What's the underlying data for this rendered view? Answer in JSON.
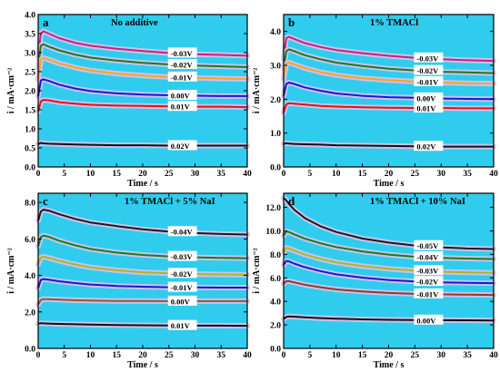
{
  "chart_data": [
    {
      "type": "line",
      "panel_letter": "a",
      "title": "No additive",
      "xlabel": "Time / s",
      "ylabel": "i / mA·cm⁻²",
      "xlim": [
        0,
        40
      ],
      "ylim": [
        0,
        4.0
      ],
      "xticks": [
        0,
        5,
        10,
        15,
        20,
        25,
        30,
        35,
        40
      ],
      "yticks": [
        0.0,
        0.5,
        1.0,
        1.5,
        2.0,
        2.5,
        3.0,
        3.5,
        4.0
      ],
      "ytick_labels": [
        "0.0",
        "0.5",
        "1.0",
        "1.5",
        "2.0",
        "2.5",
        "3.0",
        "3.5",
        "4.0"
      ],
      "series": [
        {
          "name": "-0.03V",
          "color": "#c8217a",
          "x": [
            0,
            0.5,
            1,
            2,
            4,
            7,
            10,
            15,
            20,
            25,
            30,
            35,
            40
          ],
          "y": [
            2.9,
            3.5,
            3.56,
            3.5,
            3.38,
            3.26,
            3.18,
            3.1,
            3.04,
            2.99,
            2.96,
            2.94,
            2.92
          ]
        },
        {
          "name": "-0.02V",
          "color": "#1a7a1a",
          "x": [
            0,
            0.5,
            1,
            2,
            4,
            7,
            10,
            15,
            20,
            25,
            30,
            35,
            40
          ],
          "y": [
            2.6,
            3.18,
            3.22,
            3.16,
            3.06,
            2.95,
            2.87,
            2.79,
            2.73,
            2.69,
            2.66,
            2.64,
            2.62
          ]
        },
        {
          "name": "-0.01V",
          "color": "#f5a623",
          "x": [
            0,
            0.5,
            1,
            2,
            4,
            7,
            10,
            15,
            20,
            25,
            30,
            35,
            40
          ],
          "y": [
            2.3,
            2.82,
            2.86,
            2.82,
            2.72,
            2.61,
            2.53,
            2.45,
            2.4,
            2.36,
            2.34,
            2.32,
            2.31
          ]
        },
        {
          "name": "0.00V",
          "color": "#1818d0",
          "x": [
            0,
            0.5,
            1,
            2,
            4,
            7,
            10,
            15,
            20,
            25,
            30,
            35,
            40
          ],
          "y": [
            1.85,
            2.27,
            2.3,
            2.26,
            2.16,
            2.06,
            1.99,
            1.93,
            1.9,
            1.88,
            1.87,
            1.86,
            1.86
          ]
        },
        {
          "name": "0.01V",
          "color": "#e01010",
          "x": [
            0,
            0.5,
            1,
            2,
            4,
            7,
            10,
            15,
            20,
            25,
            30,
            35,
            40
          ],
          "y": [
            1.45,
            1.72,
            1.76,
            1.75,
            1.7,
            1.66,
            1.63,
            1.61,
            1.6,
            1.59,
            1.58,
            1.58,
            1.57
          ]
        },
        {
          "name": "0.02V",
          "color": "#111111",
          "x": [
            0,
            0.5,
            1,
            2,
            4,
            7,
            10,
            15,
            20,
            25,
            30,
            35,
            40
          ],
          "y": [
            0.6,
            0.63,
            0.62,
            0.61,
            0.6,
            0.59,
            0.58,
            0.57,
            0.57,
            0.56,
            0.56,
            0.56,
            0.56
          ]
        }
      ]
    },
    {
      "type": "line",
      "panel_letter": "b",
      "title": "1% TMACl",
      "xlabel": "Time / s",
      "ylabel": "i / mA·cm⁻²",
      "xlim": [
        0,
        40
      ],
      "ylim": [
        0,
        4.5
      ],
      "xticks": [
        0,
        5,
        10,
        15,
        20,
        25,
        30,
        35,
        40
      ],
      "yticks": [
        0.0,
        1.0,
        2.0,
        3.0,
        4.0
      ],
      "ytick_labels": [
        "0.0",
        "1.0",
        "2.0",
        "3.0",
        "4.0"
      ],
      "series": [
        {
          "name": "-0.03V",
          "color": "#c8217a",
          "x": [
            0,
            0.5,
            1,
            2,
            4,
            7,
            10,
            15,
            20,
            25,
            30,
            35,
            40
          ],
          "y": [
            3.2,
            3.8,
            3.84,
            3.78,
            3.66,
            3.54,
            3.45,
            3.36,
            3.28,
            3.22,
            3.18,
            3.15,
            3.13
          ]
        },
        {
          "name": "-0.02V",
          "color": "#1a7a1a",
          "x": [
            0,
            0.5,
            1,
            2,
            4,
            7,
            10,
            15,
            20,
            25,
            30,
            35,
            40
          ],
          "y": [
            2.9,
            3.42,
            3.47,
            3.42,
            3.3,
            3.18,
            3.08,
            2.98,
            2.9,
            2.85,
            2.81,
            2.79,
            2.77
          ]
        },
        {
          "name": "-0.01V",
          "color": "#f5a623",
          "x": [
            0,
            0.5,
            1,
            2,
            4,
            7,
            10,
            15,
            20,
            25,
            30,
            35,
            40
          ],
          "y": [
            2.6,
            3.05,
            3.08,
            3.03,
            2.92,
            2.8,
            2.71,
            2.62,
            2.56,
            2.52,
            2.49,
            2.47,
            2.46
          ]
        },
        {
          "name": "0.00V",
          "color": "#1818d0",
          "x": [
            0,
            0.5,
            1,
            2,
            4,
            7,
            10,
            15,
            20,
            25,
            30,
            35,
            40
          ],
          "y": [
            2.1,
            2.45,
            2.49,
            2.45,
            2.35,
            2.25,
            2.17,
            2.1,
            2.06,
            2.04,
            2.02,
            2.01,
            2.0
          ]
        },
        {
          "name": "0.01V",
          "color": "#e01010",
          "x": [
            0,
            0.5,
            1,
            2,
            4,
            7,
            10,
            15,
            20,
            25,
            30,
            35,
            40
          ],
          "y": [
            1.6,
            1.85,
            1.88,
            1.87,
            1.84,
            1.8,
            1.78,
            1.76,
            1.75,
            1.74,
            1.74,
            1.73,
            1.73
          ]
        },
        {
          "name": "0.02V",
          "color": "#111111",
          "x": [
            0,
            0.5,
            1,
            2,
            4,
            7,
            10,
            15,
            20,
            25,
            30,
            35,
            40
          ],
          "y": [
            0.68,
            0.7,
            0.69,
            0.68,
            0.67,
            0.66,
            0.64,
            0.63,
            0.62,
            0.61,
            0.6,
            0.6,
            0.6
          ]
        }
      ]
    },
    {
      "type": "line",
      "panel_letter": "c",
      "title": "1% TMACl + 5% NaI",
      "xlabel": "Time / s",
      "ylabel": "i / mA·cm⁻²",
      "xlim": [
        0,
        40
      ],
      "ylim": [
        0,
        8.5
      ],
      "xticks": [
        0,
        5,
        10,
        15,
        20,
        25,
        30,
        35,
        40
      ],
      "yticks": [
        0.0,
        2.0,
        4.0,
        6.0,
        8.0
      ],
      "ytick_labels": [
        "0.0",
        "2.0",
        "4.0",
        "6.0",
        "8.0"
      ],
      "series": [
        {
          "name": "-0.04V",
          "color": "#1a1a1a",
          "x": [
            0,
            0.5,
            1,
            2,
            4,
            7,
            10,
            15,
            20,
            25,
            30,
            35,
            40
          ],
          "y": [
            7.0,
            7.5,
            7.6,
            7.55,
            7.35,
            7.1,
            6.9,
            6.7,
            6.52,
            6.4,
            6.32,
            6.27,
            6.24
          ]
        },
        {
          "name": "-0.03V",
          "color": "#1a7a1a",
          "x": [
            0,
            0.5,
            1,
            2,
            4,
            7,
            10,
            15,
            20,
            25,
            30,
            35,
            40
          ],
          "y": [
            5.6,
            6.1,
            6.18,
            6.12,
            5.9,
            5.65,
            5.45,
            5.25,
            5.12,
            5.04,
            4.99,
            4.96,
            4.94
          ]
        },
        {
          "name": "-0.02V",
          "color": "#a8b820",
          "x": [
            0,
            0.5,
            1,
            2,
            4,
            7,
            10,
            15,
            20,
            25,
            30,
            35,
            40
          ],
          "y": [
            4.6,
            4.98,
            5.02,
            4.96,
            4.8,
            4.6,
            4.44,
            4.28,
            4.17,
            4.11,
            4.07,
            4.05,
            4.04
          ]
        },
        {
          "name": "-0.01V",
          "color": "#1818d0",
          "x": [
            0,
            0.5,
            1,
            2,
            4,
            7,
            10,
            15,
            20,
            25,
            30,
            35,
            40
          ],
          "y": [
            3.3,
            3.75,
            3.8,
            3.77,
            3.68,
            3.58,
            3.5,
            3.42,
            3.38,
            3.35,
            3.34,
            3.33,
            3.33
          ]
        },
        {
          "name": "0.00V",
          "color": "#8b5a2b",
          "x": [
            0,
            0.5,
            1,
            2,
            4,
            7,
            10,
            15,
            20,
            25,
            30,
            35,
            40
          ],
          "y": [
            2.4,
            2.65,
            2.7,
            2.7,
            2.67,
            2.64,
            2.62,
            2.6,
            2.6,
            2.59,
            2.59,
            2.59,
            2.59
          ]
        },
        {
          "name": "0.01V",
          "color": "#111111",
          "x": [
            0,
            0.5,
            1,
            2,
            4,
            7,
            10,
            15,
            20,
            25,
            30,
            35,
            40
          ],
          "y": [
            1.35,
            1.38,
            1.37,
            1.36,
            1.34,
            1.32,
            1.3,
            1.28,
            1.27,
            1.26,
            1.25,
            1.25,
            1.24
          ]
        }
      ]
    },
    {
      "type": "line",
      "panel_letter": "d",
      "title": "1% TMACl + 10% NaI",
      "xlabel": "Time / s",
      "ylabel": "i / mA·cm⁻²",
      "xlim": [
        0,
        40
      ],
      "ylim": [
        0,
        13.2
      ],
      "xticks": [
        0,
        5,
        10,
        15,
        20,
        25,
        30,
        35,
        40
      ],
      "yticks": [
        0.0,
        2.0,
        4.0,
        6.0,
        8.0,
        10.0,
        12.0
      ],
      "ytick_labels": [
        "0.0",
        "2.0",
        "4.0",
        "6.0",
        "8.0",
        "10.0",
        "12.0"
      ],
      "series": [
        {
          "name": "-0.05V",
          "color": "#1a1a1a",
          "x": [
            0,
            0.5,
            1,
            2,
            4,
            7,
            10,
            15,
            20,
            25,
            30,
            35,
            40
          ],
          "y": [
            12.8,
            12.6,
            12.3,
            11.8,
            11.1,
            10.4,
            9.9,
            9.35,
            9.0,
            8.75,
            8.6,
            8.5,
            8.45
          ]
        },
        {
          "name": "-0.04V",
          "color": "#1a7a1a",
          "x": [
            0,
            0.5,
            1,
            2,
            4,
            7,
            10,
            15,
            20,
            25,
            30,
            35,
            40
          ],
          "y": [
            9.6,
            9.95,
            9.9,
            9.7,
            9.35,
            8.95,
            8.62,
            8.25,
            7.98,
            7.8,
            7.7,
            7.64,
            7.6
          ]
        },
        {
          "name": "-0.03V",
          "color": "#a8b820",
          "x": [
            0,
            0.5,
            1,
            2,
            4,
            7,
            10,
            15,
            20,
            25,
            30,
            35,
            40
          ],
          "y": [
            8.2,
            8.55,
            8.5,
            8.32,
            8.0,
            7.62,
            7.32,
            7.0,
            6.78,
            6.62,
            6.52,
            6.46,
            6.42
          ]
        },
        {
          "name": "-0.02V",
          "color": "#1818d0",
          "x": [
            0,
            0.5,
            1,
            2,
            4,
            7,
            10,
            15,
            20,
            25,
            30,
            35,
            40
          ],
          "y": [
            7.1,
            7.45,
            7.4,
            7.22,
            6.92,
            6.58,
            6.3,
            6.02,
            5.82,
            5.7,
            5.62,
            5.58,
            5.55
          ]
        },
        {
          "name": "-0.01V",
          "color": "#8b3a2b",
          "x": [
            0,
            0.5,
            1,
            2,
            4,
            7,
            10,
            15,
            20,
            25,
            30,
            35,
            40
          ],
          "y": [
            5.5,
            5.72,
            5.72,
            5.62,
            5.42,
            5.2,
            5.02,
            4.84,
            4.72,
            4.64,
            4.6,
            4.57,
            4.55
          ]
        },
        {
          "name": "0.00V",
          "color": "#111111",
          "x": [
            0,
            0.5,
            1,
            2,
            4,
            7,
            10,
            15,
            20,
            25,
            30,
            35,
            40
          ],
          "y": [
            2.5,
            2.68,
            2.72,
            2.7,
            2.65,
            2.58,
            2.53,
            2.47,
            2.43,
            2.41,
            2.4,
            2.39,
            2.38
          ]
        }
      ]
    }
  ]
}
